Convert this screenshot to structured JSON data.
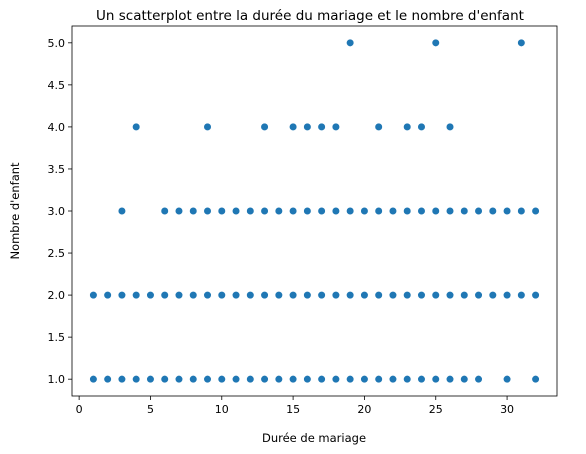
{
  "chart_data": {
    "type": "scatter",
    "title": "Un scatterplot entre la durée du mariage et le nombre d'enfant",
    "xlabel": "Durée de mariage",
    "ylabel": "Nombre d'enfant",
    "xlim": [
      -0.5,
      33.5
    ],
    "ylim": [
      0.8,
      5.2
    ],
    "xticks": [
      0,
      5,
      10,
      15,
      20,
      25,
      30
    ],
    "xtick_labels": [
      "0",
      "5",
      "10",
      "15",
      "20",
      "25",
      "30"
    ],
    "yticks": [
      1.0,
      1.5,
      2.0,
      2.5,
      3.0,
      3.5,
      4.0,
      4.5,
      5.0
    ],
    "ytick_labels": [
      "1.0",
      "1.5",
      "2.0",
      "2.5",
      "3.0",
      "3.5",
      "4.0",
      "4.5",
      "5.0"
    ],
    "grid": false,
    "marker_color": "#1f77b4",
    "points": [
      {
        "x": 1,
        "y": 1
      },
      {
        "x": 2,
        "y": 1
      },
      {
        "x": 3,
        "y": 1
      },
      {
        "x": 4,
        "y": 1
      },
      {
        "x": 5,
        "y": 1
      },
      {
        "x": 6,
        "y": 1
      },
      {
        "x": 7,
        "y": 1
      },
      {
        "x": 8,
        "y": 1
      },
      {
        "x": 9,
        "y": 1
      },
      {
        "x": 10,
        "y": 1
      },
      {
        "x": 11,
        "y": 1
      },
      {
        "x": 12,
        "y": 1
      },
      {
        "x": 13,
        "y": 1
      },
      {
        "x": 14,
        "y": 1
      },
      {
        "x": 15,
        "y": 1
      },
      {
        "x": 16,
        "y": 1
      },
      {
        "x": 17,
        "y": 1
      },
      {
        "x": 18,
        "y": 1
      },
      {
        "x": 19,
        "y": 1
      },
      {
        "x": 20,
        "y": 1
      },
      {
        "x": 21,
        "y": 1
      },
      {
        "x": 22,
        "y": 1
      },
      {
        "x": 23,
        "y": 1
      },
      {
        "x": 24,
        "y": 1
      },
      {
        "x": 25,
        "y": 1
      },
      {
        "x": 26,
        "y": 1
      },
      {
        "x": 27,
        "y": 1
      },
      {
        "x": 28,
        "y": 1
      },
      {
        "x": 30,
        "y": 1
      },
      {
        "x": 32,
        "y": 1
      },
      {
        "x": 1,
        "y": 2
      },
      {
        "x": 2,
        "y": 2
      },
      {
        "x": 3,
        "y": 2
      },
      {
        "x": 4,
        "y": 2
      },
      {
        "x": 5,
        "y": 2
      },
      {
        "x": 6,
        "y": 2
      },
      {
        "x": 7,
        "y": 2
      },
      {
        "x": 8,
        "y": 2
      },
      {
        "x": 9,
        "y": 2
      },
      {
        "x": 10,
        "y": 2
      },
      {
        "x": 11,
        "y": 2
      },
      {
        "x": 12,
        "y": 2
      },
      {
        "x": 13,
        "y": 2
      },
      {
        "x": 14,
        "y": 2
      },
      {
        "x": 15,
        "y": 2
      },
      {
        "x": 16,
        "y": 2
      },
      {
        "x": 17,
        "y": 2
      },
      {
        "x": 18,
        "y": 2
      },
      {
        "x": 19,
        "y": 2
      },
      {
        "x": 20,
        "y": 2
      },
      {
        "x": 21,
        "y": 2
      },
      {
        "x": 22,
        "y": 2
      },
      {
        "x": 23,
        "y": 2
      },
      {
        "x": 24,
        "y": 2
      },
      {
        "x": 25,
        "y": 2
      },
      {
        "x": 26,
        "y": 2
      },
      {
        "x": 27,
        "y": 2
      },
      {
        "x": 28,
        "y": 2
      },
      {
        "x": 29,
        "y": 2
      },
      {
        "x": 30,
        "y": 2
      },
      {
        "x": 31,
        "y": 2
      },
      {
        "x": 32,
        "y": 2
      },
      {
        "x": 3,
        "y": 3
      },
      {
        "x": 6,
        "y": 3
      },
      {
        "x": 7,
        "y": 3
      },
      {
        "x": 8,
        "y": 3
      },
      {
        "x": 9,
        "y": 3
      },
      {
        "x": 10,
        "y": 3
      },
      {
        "x": 11,
        "y": 3
      },
      {
        "x": 12,
        "y": 3
      },
      {
        "x": 13,
        "y": 3
      },
      {
        "x": 14,
        "y": 3
      },
      {
        "x": 15,
        "y": 3
      },
      {
        "x": 16,
        "y": 3
      },
      {
        "x": 17,
        "y": 3
      },
      {
        "x": 18,
        "y": 3
      },
      {
        "x": 19,
        "y": 3
      },
      {
        "x": 20,
        "y": 3
      },
      {
        "x": 21,
        "y": 3
      },
      {
        "x": 22,
        "y": 3
      },
      {
        "x": 23,
        "y": 3
      },
      {
        "x": 24,
        "y": 3
      },
      {
        "x": 25,
        "y": 3
      },
      {
        "x": 26,
        "y": 3
      },
      {
        "x": 27,
        "y": 3
      },
      {
        "x": 28,
        "y": 3
      },
      {
        "x": 29,
        "y": 3
      },
      {
        "x": 30,
        "y": 3
      },
      {
        "x": 31,
        "y": 3
      },
      {
        "x": 32,
        "y": 3
      },
      {
        "x": 4,
        "y": 4
      },
      {
        "x": 9,
        "y": 4
      },
      {
        "x": 13,
        "y": 4
      },
      {
        "x": 15,
        "y": 4
      },
      {
        "x": 16,
        "y": 4
      },
      {
        "x": 17,
        "y": 4
      },
      {
        "x": 18,
        "y": 4
      },
      {
        "x": 21,
        "y": 4
      },
      {
        "x": 23,
        "y": 4
      },
      {
        "x": 24,
        "y": 4
      },
      {
        "x": 26,
        "y": 4
      },
      {
        "x": 19,
        "y": 5
      },
      {
        "x": 25,
        "y": 5
      },
      {
        "x": 31,
        "y": 5
      }
    ]
  }
}
